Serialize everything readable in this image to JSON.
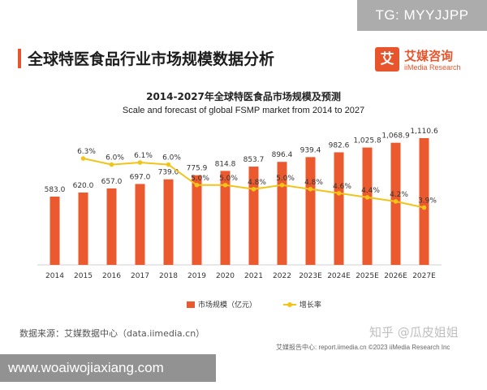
{
  "watermark_tg": "TG: MYYJJPP",
  "title": "全球特医食品行业市场规模数据分析",
  "logo": {
    "mark": "艾",
    "name_cn": "艾媒咨询",
    "name_en": "iiMedia Research"
  },
  "source": "数据来源：艾媒数据中心（data.iimedia.cn）",
  "watermark_zhihu": "知乎 @瓜皮姐姐",
  "footer": "艾媒报告中心: report.iimedia.cn   ©2023  iiMedia Research Inc",
  "url_badge": "www.woaiwojiaxiang.com",
  "colors": {
    "bar": "#ea5a2e",
    "line": "#f0c419",
    "accent": "#e8542b"
  },
  "chart_data": {
    "type": "bar",
    "title": "2014-2027年全球特医食品市场规模及预测",
    "subtitle": "Scale and forecast of global FSMP market from 2014 to 2027",
    "categories": [
      "2014",
      "2015",
      "2016",
      "2017",
      "2018",
      "2019",
      "2020",
      "2021",
      "2022",
      "2023E",
      "2024E",
      "2025E",
      "2026E",
      "2027E"
    ],
    "series": [
      {
        "name": "市场规模（亿元）",
        "type": "bar",
        "values": [
          583.0,
          620.0,
          657.0,
          697.0,
          739.0,
          775.9,
          814.8,
          853.7,
          896.4,
          939.4,
          982.6,
          1025.8,
          1068.9,
          1110.6
        ],
        "labels": [
          "583.0",
          "620.0",
          "657.0",
          "697.0",
          "739.0",
          "775.9",
          "814.8",
          "853.7",
          "896.4",
          "939.4",
          "982.6",
          "1,025.8",
          "1,068.9",
          "1,110.6"
        ]
      },
      {
        "name": "增长率",
        "type": "line",
        "values": [
          null,
          6.3,
          6.0,
          6.1,
          6.0,
          5.0,
          5.0,
          4.8,
          5.0,
          4.8,
          4.6,
          4.4,
          4.2,
          3.9
        ],
        "labels": [
          "",
          "6.3%",
          "6.0%",
          "6.1%",
          "6.0%",
          "5.0%",
          "5.0%",
          "4.8%",
          "5.0%",
          "4.8%",
          "4.6%",
          "4.4%",
          "4.2%",
          "3.9%"
        ]
      }
    ],
    "legend_position": "bottom",
    "grid": false
  }
}
